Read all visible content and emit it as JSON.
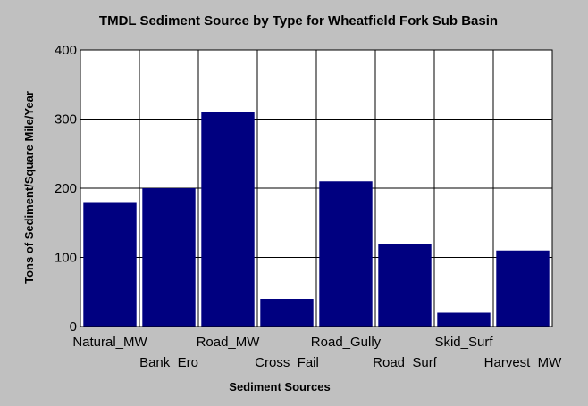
{
  "chart_data": {
    "type": "bar",
    "title": "TMDL Sediment Source by Type for Wheatfield Fork Sub Basin",
    "xlabel": "Sediment Sources",
    "ylabel": "Tons of Sediment/Square Mile/Year",
    "categories": [
      "Natural_MW",
      "Bank_Ero",
      "Road_MW",
      "Cross_Fail",
      "Road_Gully",
      "Road_Surf",
      "Skid_Surf",
      "Harvest_MW"
    ],
    "values": [
      180,
      200,
      310,
      40,
      210,
      120,
      20,
      110
    ],
    "ylim": [
      0,
      400
    ],
    "yticks": [
      "0",
      "100",
      "200",
      "300",
      "400"
    ],
    "grid": true,
    "colors": {
      "background": "#c0c0c0",
      "plot": "#ffffff",
      "bar": "#000080",
      "grid": "#000000"
    }
  }
}
